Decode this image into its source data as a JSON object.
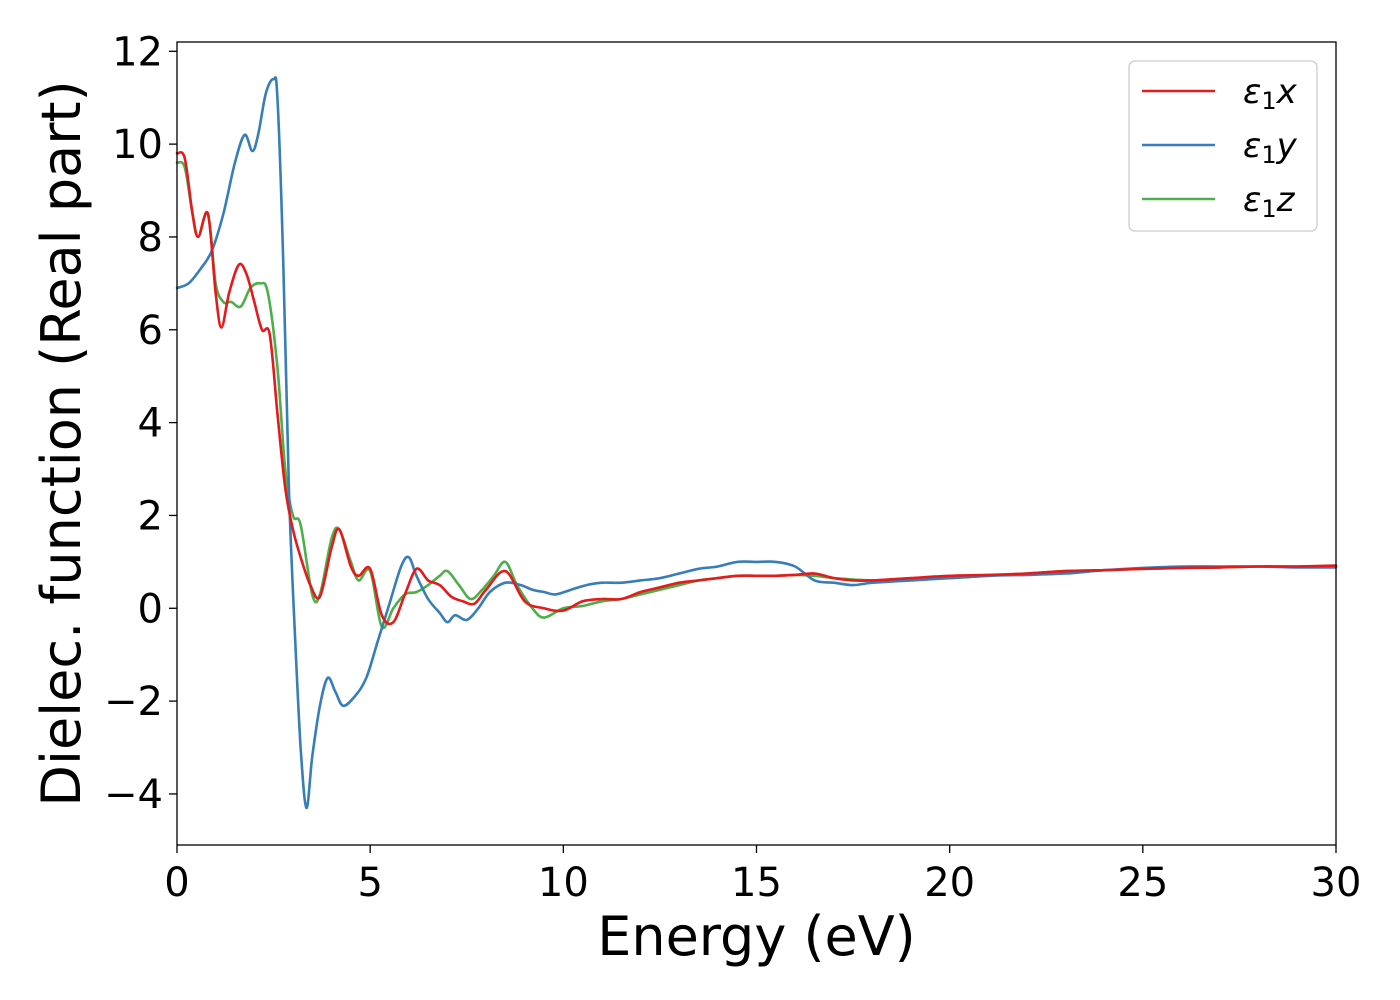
{
  "chart_data": {
    "type": "line",
    "title": "",
    "xlabel": "Energy (eV)",
    "ylabel": "Dielec. function (Real part)",
    "xlim": [
      0,
      30
    ],
    "ylim": [
      -5.1,
      12.2
    ],
    "x_ticks": [
      0,
      5,
      10,
      15,
      20,
      25,
      30
    ],
    "x_tick_labels": [
      "0",
      "5",
      "10",
      "15",
      "20",
      "25",
      "30"
    ],
    "y_ticks": [
      -4,
      -2,
      0,
      2,
      4,
      6,
      8,
      10,
      12
    ],
    "y_tick_labels": [
      "−4",
      "−2",
      "0",
      "2",
      "4",
      "6",
      "8",
      "10",
      "12"
    ],
    "grid": false,
    "legend_position": "top-right",
    "series": [
      {
        "name": "ε₁x",
        "label_base": "ε",
        "label_sub": "1",
        "label_var": "x",
        "color": "#e41a1c",
        "x": [
          0,
          0.2,
          0.4,
          0.55,
          0.8,
          1.0,
          1.15,
          1.35,
          1.6,
          1.8,
          2.0,
          2.2,
          2.4,
          2.6,
          2.8,
          3.0,
          3.2,
          3.45,
          3.7,
          4.0,
          4.2,
          4.5,
          4.7,
          5.0,
          5.3,
          5.6,
          5.9,
          6.2,
          6.5,
          6.8,
          7.1,
          7.4,
          7.7,
          8.0,
          8.5,
          9.0,
          9.5,
          10.0,
          10.5,
          11.0,
          11.5,
          12.0,
          12.5,
          13.0,
          13.5,
          14.0,
          14.5,
          15.0,
          15.5,
          16.0,
          16.5,
          17.0,
          17.5,
          18.0,
          19.0,
          20.0,
          21.0,
          22.0,
          23.0,
          24.0,
          25.0,
          26.0,
          27.0,
          28.0,
          29.0,
          30.0
        ],
        "y": [
          9.8,
          9.7,
          8.5,
          8.0,
          8.5,
          6.8,
          6.05,
          6.8,
          7.4,
          7.2,
          6.6,
          6.0,
          5.9,
          4.2,
          2.6,
          1.7,
          1.1,
          0.5,
          0.25,
          1.3,
          1.7,
          0.9,
          0.7,
          0.85,
          -0.15,
          -0.3,
          0.3,
          0.85,
          0.6,
          0.5,
          0.25,
          0.15,
          0.1,
          0.4,
          0.8,
          0.15,
          0.0,
          -0.05,
          0.15,
          0.2,
          0.2,
          0.35,
          0.45,
          0.55,
          0.6,
          0.65,
          0.7,
          0.7,
          0.7,
          0.72,
          0.75,
          0.65,
          0.6,
          0.6,
          0.65,
          0.7,
          0.72,
          0.75,
          0.8,
          0.82,
          0.85,
          0.87,
          0.88,
          0.9,
          0.9,
          0.92
        ]
      },
      {
        "name": "ε₁y",
        "label_base": "ε",
        "label_sub": "1",
        "label_var": "y",
        "color": "#377eb8",
        "x": [
          0,
          0.3,
          0.6,
          0.9,
          1.2,
          1.5,
          1.75,
          1.95,
          2.1,
          2.3,
          2.5,
          2.6,
          2.75,
          2.9,
          3.05,
          3.2,
          3.35,
          3.5,
          3.7,
          3.9,
          4.1,
          4.3,
          4.6,
          4.9,
          5.2,
          5.5,
          5.8,
          6.0,
          6.2,
          6.5,
          6.8,
          7.0,
          7.2,
          7.5,
          7.8,
          8.1,
          8.5,
          8.9,
          9.2,
          9.5,
          9.8,
          10.2,
          10.6,
          11.0,
          11.5,
          12.0,
          12.5,
          13.0,
          13.5,
          14.0,
          14.5,
          15.0,
          15.5,
          16.0,
          16.5,
          17.0,
          17.5,
          18.0,
          19.0,
          20.0,
          21.0,
          22.0,
          23.0,
          24.0,
          25.0,
          26.0,
          27.0,
          28.0,
          29.0,
          30.0
        ],
        "y": [
          6.9,
          7.0,
          7.3,
          7.7,
          8.5,
          9.6,
          10.2,
          9.85,
          10.2,
          11.1,
          11.4,
          11.0,
          7.5,
          2.5,
          -0.5,
          -3.0,
          -4.3,
          -3.2,
          -2.1,
          -1.5,
          -1.8,
          -2.1,
          -1.9,
          -1.5,
          -0.7,
          0.1,
          0.9,
          1.1,
          0.7,
          0.2,
          -0.1,
          -0.3,
          -0.15,
          -0.25,
          0.0,
          0.35,
          0.55,
          0.5,
          0.4,
          0.35,
          0.3,
          0.4,
          0.5,
          0.55,
          0.55,
          0.6,
          0.65,
          0.75,
          0.85,
          0.9,
          1.0,
          1.0,
          1.0,
          0.9,
          0.6,
          0.55,
          0.5,
          0.55,
          0.6,
          0.65,
          0.7,
          0.72,
          0.75,
          0.82,
          0.87,
          0.9,
          0.9,
          0.9,
          0.88,
          0.88
        ]
      },
      {
        "name": "ε₁z",
        "label_base": "ε",
        "label_sub": "1",
        "label_var": "z",
        "color": "#4daf4a",
        "x": [
          0,
          0.2,
          0.4,
          0.55,
          0.8,
          1.0,
          1.2,
          1.4,
          1.65,
          1.9,
          2.15,
          2.35,
          2.6,
          2.8,
          3.0,
          3.2,
          3.5,
          3.7,
          4.0,
          4.2,
          4.5,
          4.7,
          5.0,
          5.3,
          5.6,
          5.9,
          6.2,
          6.5,
          6.8,
          7.0,
          7.3,
          7.6,
          7.9,
          8.2,
          8.5,
          8.8,
          9.2,
          9.5,
          10.0,
          10.5,
          11.0,
          11.5,
          12.0,
          12.5,
          13.0,
          13.5,
          14.0,
          14.5,
          15.0,
          15.5,
          16.0,
          16.5,
          17.0,
          17.5,
          18.0,
          19.0,
          20.0,
          21.0,
          22.0,
          23.0,
          24.0,
          25.0,
          26.0,
          27.0,
          28.0,
          29.0,
          30.0
        ],
        "y": [
          9.6,
          9.5,
          8.5,
          8.0,
          8.5,
          7.0,
          6.6,
          6.6,
          6.5,
          6.9,
          7.0,
          6.8,
          5.2,
          3.0,
          2.0,
          1.8,
          0.3,
          0.3,
          1.5,
          1.7,
          1.0,
          0.6,
          0.8,
          -0.4,
          0.0,
          0.3,
          0.35,
          0.5,
          0.7,
          0.8,
          0.5,
          0.2,
          0.4,
          0.7,
          1.0,
          0.5,
          0.0,
          -0.2,
          0.0,
          0.05,
          0.15,
          0.2,
          0.3,
          0.4,
          0.5,
          0.6,
          0.65,
          0.7,
          0.7,
          0.7,
          0.72,
          0.7,
          0.65,
          0.62,
          0.6,
          0.62,
          0.65,
          0.7,
          0.75,
          0.8,
          0.82,
          0.85,
          0.87,
          0.88,
          0.9,
          0.9,
          0.9
        ]
      }
    ]
  }
}
